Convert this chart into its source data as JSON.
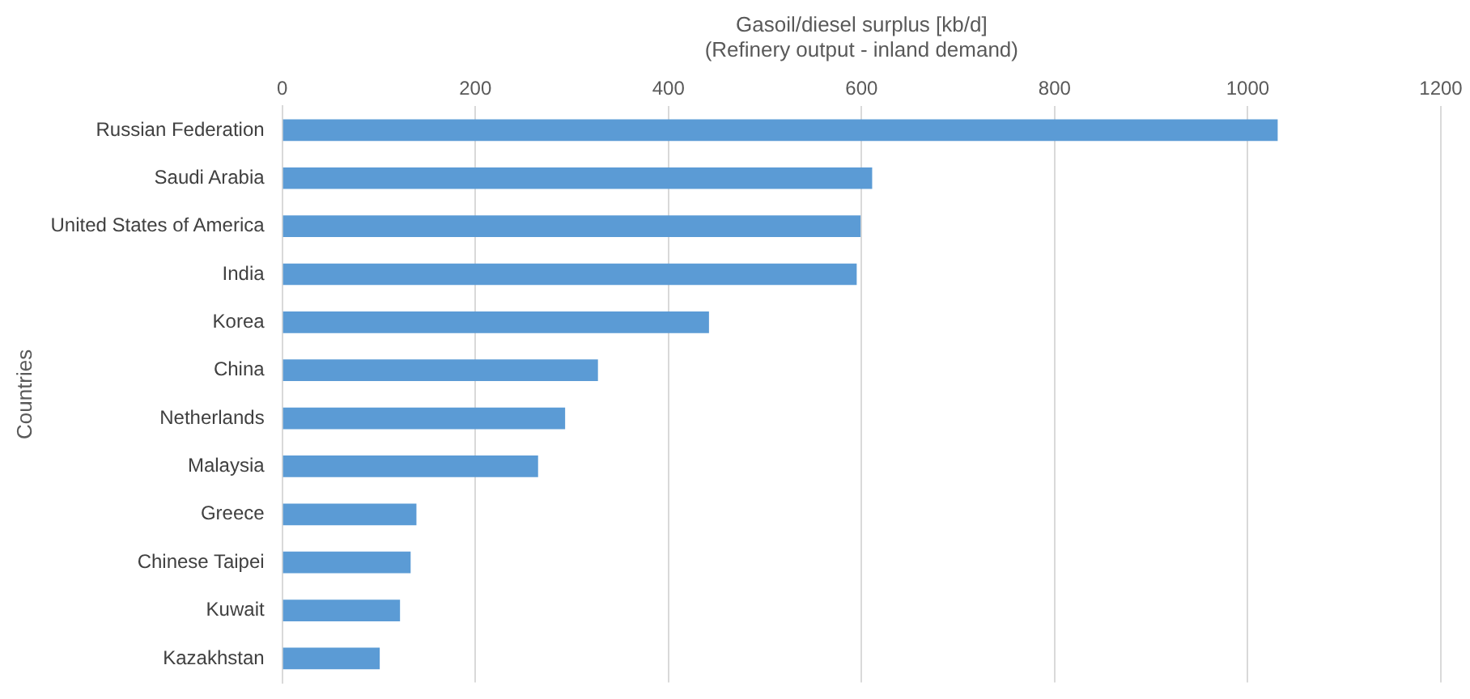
{
  "chart_data": {
    "type": "bar",
    "orientation": "horizontal",
    "xlabel": "Gasoil/diesel surplus [kb/d]\n(Refinery output - inland demand)",
    "ylabel": "Countries",
    "categories": [
      "Russian Federation",
      "Saudi Arabia",
      "United States of America",
      "India",
      "Korea",
      "China",
      "Netherlands",
      "Malaysia",
      "Greece",
      "Chinese Taipei",
      "Kuwait",
      "Kazakhstan"
    ],
    "values": [
      1031,
      611,
      599,
      595,
      442,
      327,
      293,
      265,
      139,
      133,
      122,
      101
    ],
    "color": "#5b9bd5",
    "xlim": [
      0,
      1200
    ],
    "xticks": [
      0,
      200,
      400,
      600,
      800,
      1000,
      1200
    ],
    "grid": "x",
    "legend": false
  }
}
